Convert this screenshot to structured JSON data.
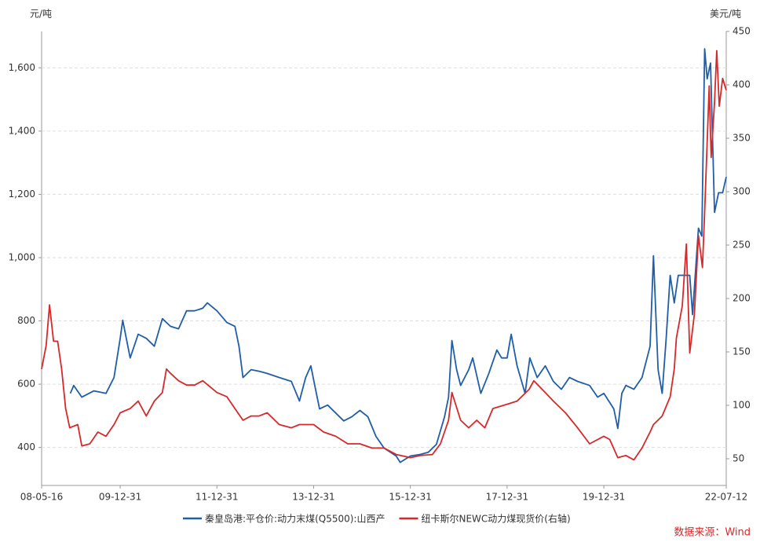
{
  "chart_data": {
    "type": "line",
    "y_label": "元/吨",
    "y2_label": "美元/吨",
    "source": "数据来源：Wind",
    "xlim": [
      "08-05-16",
      "22-07-12"
    ],
    "xticks": [
      "08-05-16",
      "09-12-31",
      "11-12-31",
      "13-12-31",
      "15-12-31",
      "17-12-31",
      "19-12-31",
      "22-07-12"
    ],
    "ylim": [
      280,
      1715
    ],
    "yticks": [
      400,
      600,
      800,
      {
        "value": 1000,
        "label": "1,000"
      },
      {
        "value": 1200,
        "label": "1,200"
      },
      {
        "value": 1400,
        "label": "1,400"
      },
      {
        "value": 1600,
        "label": "1,600"
      }
    ],
    "y2lim": [
      25,
      450
    ],
    "y2ticks": [
      50,
      100,
      150,
      200,
      250,
      300,
      350,
      400,
      450
    ],
    "grid": true,
    "series": [
      {
        "name": "秦皇岛港:平仓价:动力末煤(Q5500):山西产",
        "color": "#1f5ea8",
        "axis": "y",
        "x": [
          "08-12-20",
          "09-01-15",
          "09-03-15",
          "09-06-15",
          "09-09-15",
          "09-11-15",
          "09-12-31",
          "10-01-20",
          "10-03-15",
          "10-05-15",
          "10-07-15",
          "10-09-15",
          "10-11-15",
          "11-01-15",
          "11-03-15",
          "11-05-15",
          "11-07-15",
          "11-09-15",
          "11-10-20",
          "11-12-31",
          "12-03-15",
          "12-05-15",
          "12-06-15",
          "12-07-15",
          "12-09-15",
          "12-11-15",
          "13-01-15",
          "13-04-15",
          "13-07-15",
          "13-09-15",
          "13-11-01",
          "13-12-10",
          "14-01-15",
          "14-02-15",
          "14-04-15",
          "14-06-15",
          "14-08-15",
          "14-10-15",
          "14-12-15",
          "15-02-15",
          "15-04-15",
          "15-06-15",
          "15-09-15",
          "15-10-15",
          "15-12-31",
          "16-03-15",
          "16-05-15",
          "16-07-15",
          "16-09-15",
          "16-10-15",
          "16-11-10",
          "16-12-15",
          "17-01-15",
          "17-03-15",
          "17-04-15",
          "17-06-15",
          "17-08-15",
          "17-10-15",
          "17-11-20",
          "17-12-31",
          "18-02-01",
          "18-03-15",
          "18-05-15",
          "18-06-20",
          "18-08-15",
          "18-10-15",
          "18-12-15",
          "19-02-15",
          "19-04-15",
          "19-06-15",
          "19-09-15",
          "19-11-15",
          "19-12-31",
          "20-03-15",
          "20-04-15",
          "20-05-15",
          "20-06-15",
          "20-08-15",
          "20-10-15",
          "20-12-15",
          "21-01-10",
          "21-02-15",
          "21-03-15",
          "21-04-15",
          "21-05-15",
          "21-06-15",
          "21-07-15",
          "21-09-15",
          "21-10-10",
          "21-11-01",
          "21-12-15",
          "22-01-10",
          "22-02-01",
          "22-02-20",
          "22-03-15",
          "22-04-15",
          "22-05-15",
          "22-06-15",
          "22-07-12"
        ],
        "values": [
          571,
          596,
          559,
          579,
          571,
          621,
          745,
          802,
          683,
          758,
          745,
          720,
          807,
          783,
          775,
          832,
          832,
          840,
          857,
          832,
          795,
          783,
          720,
          621,
          646,
          641,
          634,
          621,
          609,
          547,
          621,
          658,
          584,
          522,
          534,
          509,
          484,
          497,
          517,
          497,
          435,
          398,
          373,
          353,
          373,
          378,
          385,
          410,
          497,
          559,
          738,
          646,
          596,
          646,
          683,
          571,
          634,
          708,
          683,
          683,
          758,
          658,
          571,
          683,
          621,
          658,
          609,
          584,
          621,
          609,
          596,
          559,
          571,
          522,
          460,
          571,
          596,
          584,
          621,
          720,
          1006,
          646,
          571,
          745,
          944,
          857,
          944,
          944,
          944,
          820,
          1093,
          1068,
          1660,
          1565,
          1615,
          1143,
          1205,
          1205,
          1255
        ]
      },
      {
        "name": "纽卡斯尔NEWC动力煤现货价(右轴)",
        "color": "#d7282a",
        "axis": "y2",
        "x": [
          "08-05-16",
          "08-06-20",
          "08-07-15",
          "08-08-15",
          "08-09-15",
          "08-10-15",
          "08-11-15",
          "08-12-15",
          "09-02-15",
          "09-03-15",
          "09-05-15",
          "09-07-15",
          "09-09-15",
          "09-11-15",
          "09-12-31",
          "10-03-15",
          "10-05-15",
          "10-07-15",
          "10-09-15",
          "10-11-15",
          "10-12-15",
          "11-01-15",
          "11-03-15",
          "11-05-15",
          "11-07-15",
          "11-09-15",
          "11-12-31",
          "12-03-15",
          "12-05-15",
          "12-07-15",
          "12-09-15",
          "12-11-15",
          "13-01-15",
          "13-04-15",
          "13-07-15",
          "13-09-15",
          "13-12-31",
          "14-03-15",
          "14-06-15",
          "14-09-15",
          "14-12-15",
          "15-03-15",
          "15-06-15",
          "15-09-15",
          "15-12-31",
          "16-03-15",
          "16-06-15",
          "16-08-15",
          "16-10-15",
          "16-11-10",
          "17-01-15",
          "17-03-15",
          "17-05-15",
          "17-07-15",
          "17-09-15",
          "17-12-31",
          "18-03-15",
          "18-06-15",
          "18-07-20",
          "18-10-15",
          "18-12-15",
          "19-03-15",
          "19-06-15",
          "19-09-15",
          "19-12-31",
          "20-02-15",
          "20-04-15",
          "20-06-15",
          "20-08-15",
          "20-10-15",
          "20-12-15",
          "21-01-10",
          "21-03-15",
          "21-05-15",
          "21-06-15",
          "21-07-01",
          "21-08-15",
          "21-09-15",
          "21-10-10",
          "21-11-15",
          "21-12-15",
          "22-01-15",
          "22-02-01",
          "22-03-05",
          "22-03-20",
          "22-04-15",
          "22-05-01",
          "22-05-20",
          "22-06-15",
          "22-07-12"
        ],
        "values": [
          134,
          156,
          194,
          160,
          160,
          134,
          97,
          79,
          82,
          62,
          64,
          75,
          71,
          82,
          93,
          97,
          104,
          90,
          104,
          112,
          134,
          130,
          123,
          119,
          119,
          123,
          112,
          108,
          97,
          86,
          90,
          90,
          93,
          82,
          79,
          82,
          82,
          75,
          71,
          64,
          64,
          60,
          60,
          54,
          51,
          53,
          54,
          64,
          86,
          112,
          86,
          79,
          86,
          79,
          97,
          101,
          104,
          115,
          123,
          112,
          104,
          93,
          79,
          64,
          71,
          68,
          51,
          53,
          49,
          60,
          75,
          82,
          90,
          108,
          134,
          163,
          193,
          251,
          149,
          185,
          259,
          229,
          281,
          399,
          332,
          384,
          432,
          380,
          406,
          395
        ]
      }
    ]
  }
}
